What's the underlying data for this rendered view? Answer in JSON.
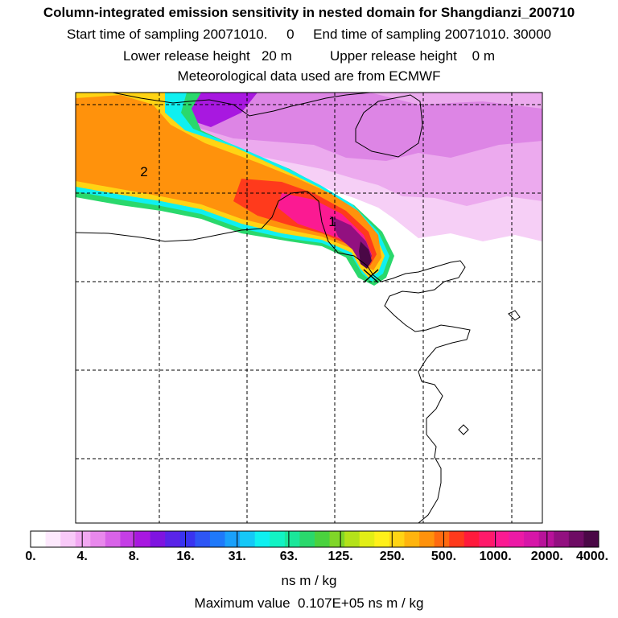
{
  "header": {
    "title": "Column-integrated emission sensitivity in nested domain for Shangdianzi_200710",
    "sampling_line": "Start time of sampling 20071010.     0     End time of sampling 20071010. 30000",
    "release_line": "Lower release height   20 m          Upper release height    0 m",
    "met_line": "Meteorological data used are from ECMWF"
  },
  "map": {
    "markers": [
      {
        "id": "2",
        "label": "2"
      },
      {
        "id": "1",
        "label": "1"
      }
    ],
    "station_symbol": "receptor-cross"
  },
  "colorbar": {
    "colors": [
      "#ffffff",
      "#fde9fd",
      "#f8c9f8",
      "#f2a8f2",
      "#e888ec",
      "#d863e8",
      "#c53ee6",
      "#a818e0",
      "#7f14e0",
      "#5a24e8",
      "#3a33f0",
      "#2e56f5",
      "#1f79fa",
      "#1aa0fb",
      "#15c8f7",
      "#0ff0f0",
      "#12f3c4",
      "#1ae79a",
      "#2ad86c",
      "#4ad23e",
      "#80d628",
      "#b4e21a",
      "#e2ee16",
      "#fff01a",
      "#ffd414",
      "#ffb40e",
      "#ff920c",
      "#ff6a10",
      "#ff3a1c",
      "#ff1a3c",
      "#ff1a6a",
      "#fb1a92",
      "#ec1aa6",
      "#d616a8",
      "#b8129a",
      "#921080",
      "#6e0c64",
      "#4a0846"
    ],
    "tick_labels": [
      "0.",
      "4.",
      "8.",
      "16.",
      "31.",
      "63.",
      "125.",
      "250.",
      "500.",
      "1000.",
      "2000.",
      "4000."
    ],
    "units": "ns m / kg"
  },
  "footer": {
    "max_value": "Maximum value  0.107E+05 ns m / kg"
  }
}
